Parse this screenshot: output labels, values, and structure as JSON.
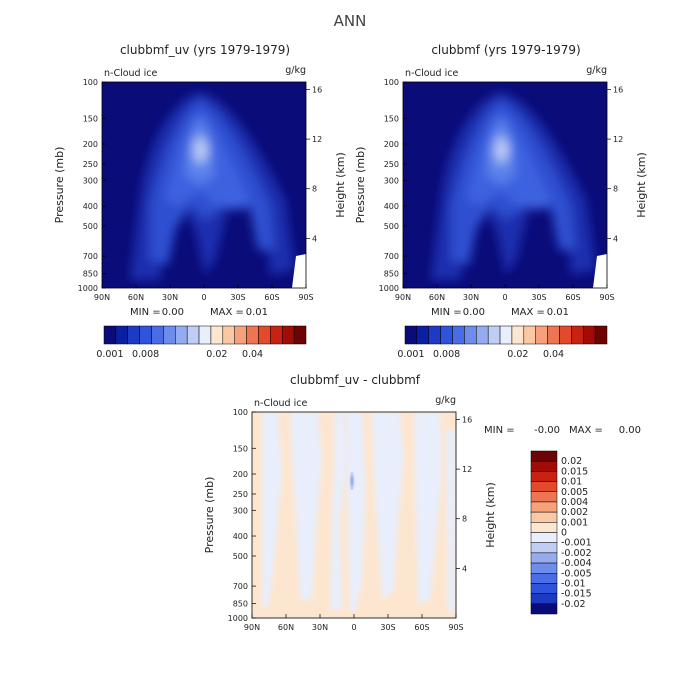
{
  "figure": {
    "title": "ANN"
  },
  "chart_data": [
    {
      "type": "heatmap",
      "title": "clubbmf_uv (yrs 1979-1979)",
      "field_label": "n-Cloud ice",
      "units": "g/kg",
      "xlabel": "",
      "ylabel": "Pressure (mb)",
      "y2label": "Height (km)",
      "x_ticks": [
        "90N",
        "60N",
        "30N",
        "0",
        "30S",
        "60S",
        "90S"
      ],
      "y_ticks": [
        100,
        150,
        200,
        250,
        300,
        400,
        500,
        700,
        850,
        1000
      ],
      "y2_ticks": [
        16,
        12,
        8,
        4
      ],
      "stats": {
        "min_label": "MIN =",
        "min": "0.00",
        "max_label": "MAX =",
        "max": "0.01"
      },
      "colorbar": {
        "orientation": "horizontal",
        "labels": [
          "0.001",
          "0.008",
          "0.02",
          "0.04"
        ],
        "colors": [
          "#0a0c7a",
          "#0c1fa0",
          "#1d3bc2",
          "#2f54dc",
          "#4a6de6",
          "#6e8ceb",
          "#95abef",
          "#c0cdf5",
          "#e8eefb",
          "#fde6cf",
          "#fbc8a6",
          "#f6a17c",
          "#ee7552",
          "#e24a2b",
          "#c92212",
          "#a10c07",
          "#6e0303"
        ]
      }
    },
    {
      "type": "heatmap",
      "title": "clubbmf (yrs 1979-1979)",
      "field_label": "n-Cloud ice",
      "units": "g/kg",
      "xlabel": "",
      "ylabel": "Pressure (mb)",
      "y2label": "Height (km)",
      "x_ticks": [
        "90N",
        "60N",
        "30N",
        "0",
        "30S",
        "60S",
        "90S"
      ],
      "y_ticks": [
        100,
        150,
        200,
        250,
        300,
        400,
        500,
        700,
        850,
        1000
      ],
      "y2_ticks": [
        16,
        12,
        8,
        4
      ],
      "stats": {
        "min_label": "MIN =",
        "min": "0.00",
        "max_label": "MAX =",
        "max": "0.01"
      },
      "colorbar": {
        "orientation": "horizontal",
        "labels": [
          "0.001",
          "0.008",
          "0.02",
          "0.04"
        ],
        "colors": [
          "#0a0c7a",
          "#0c1fa0",
          "#1d3bc2",
          "#2f54dc",
          "#4a6de6",
          "#6e8ceb",
          "#95abef",
          "#c0cdf5",
          "#e8eefb",
          "#fde6cf",
          "#fbc8a6",
          "#f6a17c",
          "#ee7552",
          "#e24a2b",
          "#c92212",
          "#a10c07",
          "#6e0303"
        ]
      }
    },
    {
      "type": "heatmap",
      "title": "clubbmf_uv - clubbmf",
      "field_label": "n-Cloud ice",
      "units": "g/kg",
      "xlabel": "",
      "ylabel": "Pressure (mb)",
      "y2label": "Height (km)",
      "x_ticks": [
        "90N",
        "60N",
        "30N",
        "0",
        "30S",
        "60S",
        "90S"
      ],
      "y_ticks": [
        100,
        150,
        200,
        250,
        300,
        400,
        500,
        700,
        850,
        1000
      ],
      "y2_ticks": [
        16,
        12,
        8,
        4
      ],
      "stats": {
        "min_label": "MIN =",
        "min": "-0.00",
        "max_label": "MAX =",
        "max": "0.00"
      },
      "colorbar": {
        "orientation": "vertical",
        "labels": [
          "0.02",
          "0.015",
          "0.01",
          "0.005",
          "0.004",
          "0.002",
          "0.001",
          "0",
          "-0.001",
          "-0.002",
          "-0.004",
          "-0.005",
          "-0.01",
          "-0.015",
          "-0.02"
        ],
        "colors": [
          "#6e0303",
          "#a10c07",
          "#c92212",
          "#e24a2b",
          "#ee7552",
          "#f6a17c",
          "#fbc8a6",
          "#fde6cf",
          "#e8eefb",
          "#c0cdf5",
          "#95abef",
          "#6e8ceb",
          "#4a6de6",
          "#2f54dc",
          "#1d3bc2",
          "#0a0c7a"
        ]
      }
    }
  ]
}
